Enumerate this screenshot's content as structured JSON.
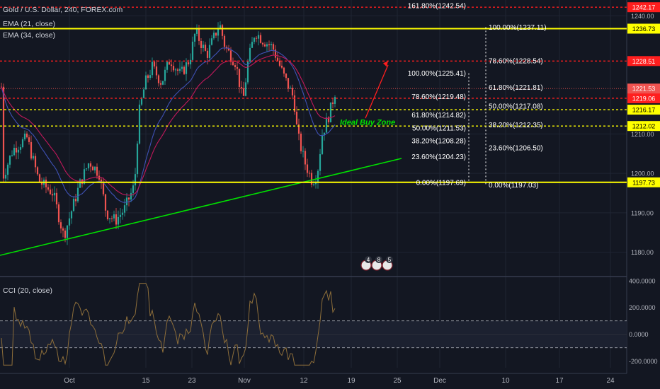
{
  "header": {
    "title": "Gold / U.S. Dollar, 240, FOREX.com",
    "ema21": "EMA (21, close)",
    "ema34": "EMA (34, close)",
    "cci": "CCI (20, close)"
  },
  "chart_data": [
    {
      "type": "candlestick",
      "title": "Gold / U.S. Dollar, 240, FOREX.com",
      "ylim": [
        1174,
        1244
      ],
      "grid": true,
      "y_ticks": [
        1180.0,
        1190.0,
        1200.0,
        1210.0,
        1240.0
      ],
      "x_ticks": [
        "Oct",
        "15",
        "23",
        "Nov",
        "12",
        "19",
        "25",
        "Dec",
        "10",
        "17",
        "24"
      ],
      "colors": {
        "up": "#26a69a",
        "down": "#ef5350",
        "ema21": "#3f51b5",
        "ema34": "#c2185b",
        "trend": "#00e000",
        "yellow": "#ffff00",
        "red_level": "#ff1e1e",
        "arrow": "#ff1e1e"
      },
      "horizontal_levels": [
        {
          "price": 1242.17,
          "label": "1242.17",
          "color": "#ff1e1e",
          "style": "dashed"
        },
        {
          "price": 1236.73,
          "label": "1236.73",
          "color": "#ffff00",
          "style": "solid"
        },
        {
          "price": 1228.51,
          "label": "1228.51",
          "color": "#ff1e1e",
          "style": "dashed"
        },
        {
          "price": 1219.06,
          "label": "1219.06",
          "color": "#ff1e1e",
          "style": "dashed"
        },
        {
          "price": 1216.17,
          "label": "1216.17",
          "color": "#ffff00",
          "style": "dashed"
        },
        {
          "price": 1212.02,
          "label": "1212.02",
          "color": "#ffff00",
          "style": "dashed"
        },
        {
          "price": 1197.73,
          "label": "1197.73",
          "color": "#ffff00",
          "style": "solid"
        }
      ],
      "current_price": {
        "price": 1221.53,
        "label": "1221.53",
        "color": "#ef5350"
      },
      "fib_labels_left": [
        {
          "text": "161.80%(1242.54)",
          "price": 1242.54
        },
        {
          "text": "100.00%(1225.41)",
          "price": 1225.41
        },
        {
          "text": "78.60%(1219.48)",
          "price": 1219.48
        },
        {
          "text": "61.80%(1214.82)",
          "price": 1214.82
        },
        {
          "text": "50.00%(1211.53)",
          "price": 1211.53
        },
        {
          "text": "38.20%(1208.28)",
          "price": 1208.28
        },
        {
          "text": "23.60%(1204.23)",
          "price": 1204.23
        },
        {
          "text": "0.00%(1197.69)",
          "price": 1197.69
        }
      ],
      "fib_labels_right": [
        {
          "text": "100.00%(1237.11)",
          "price": 1237.11
        },
        {
          "text": "78.60%(1228.54)",
          "price": 1228.54
        },
        {
          "text": "61.80%(1221.81)",
          "price": 1221.81
        },
        {
          "text": "50.00%(1217.08)",
          "price": 1217.08
        },
        {
          "text": "38.20%(1212.35)",
          "price": 1212.35
        },
        {
          "text": "23.60%(1206.50)",
          "price": 1206.5
        },
        {
          "text": "0.00%(1197.03)",
          "price": 1197.03
        }
      ],
      "annotation": "Ideal Buy Zone",
      "trend_line": [
        [
          0,
          1179.2
        ],
        [
          567,
          1203.8
        ]
      ],
      "events": [
        "4",
        "8",
        "5"
      ]
    },
    {
      "type": "line",
      "title": "CCI (20, close)",
      "ylim": [
        -250,
        420
      ],
      "y_ticks": [
        400.0,
        200.0,
        0.0,
        -200.0
      ],
      "bands": [
        100,
        -100
      ]
    }
  ]
}
